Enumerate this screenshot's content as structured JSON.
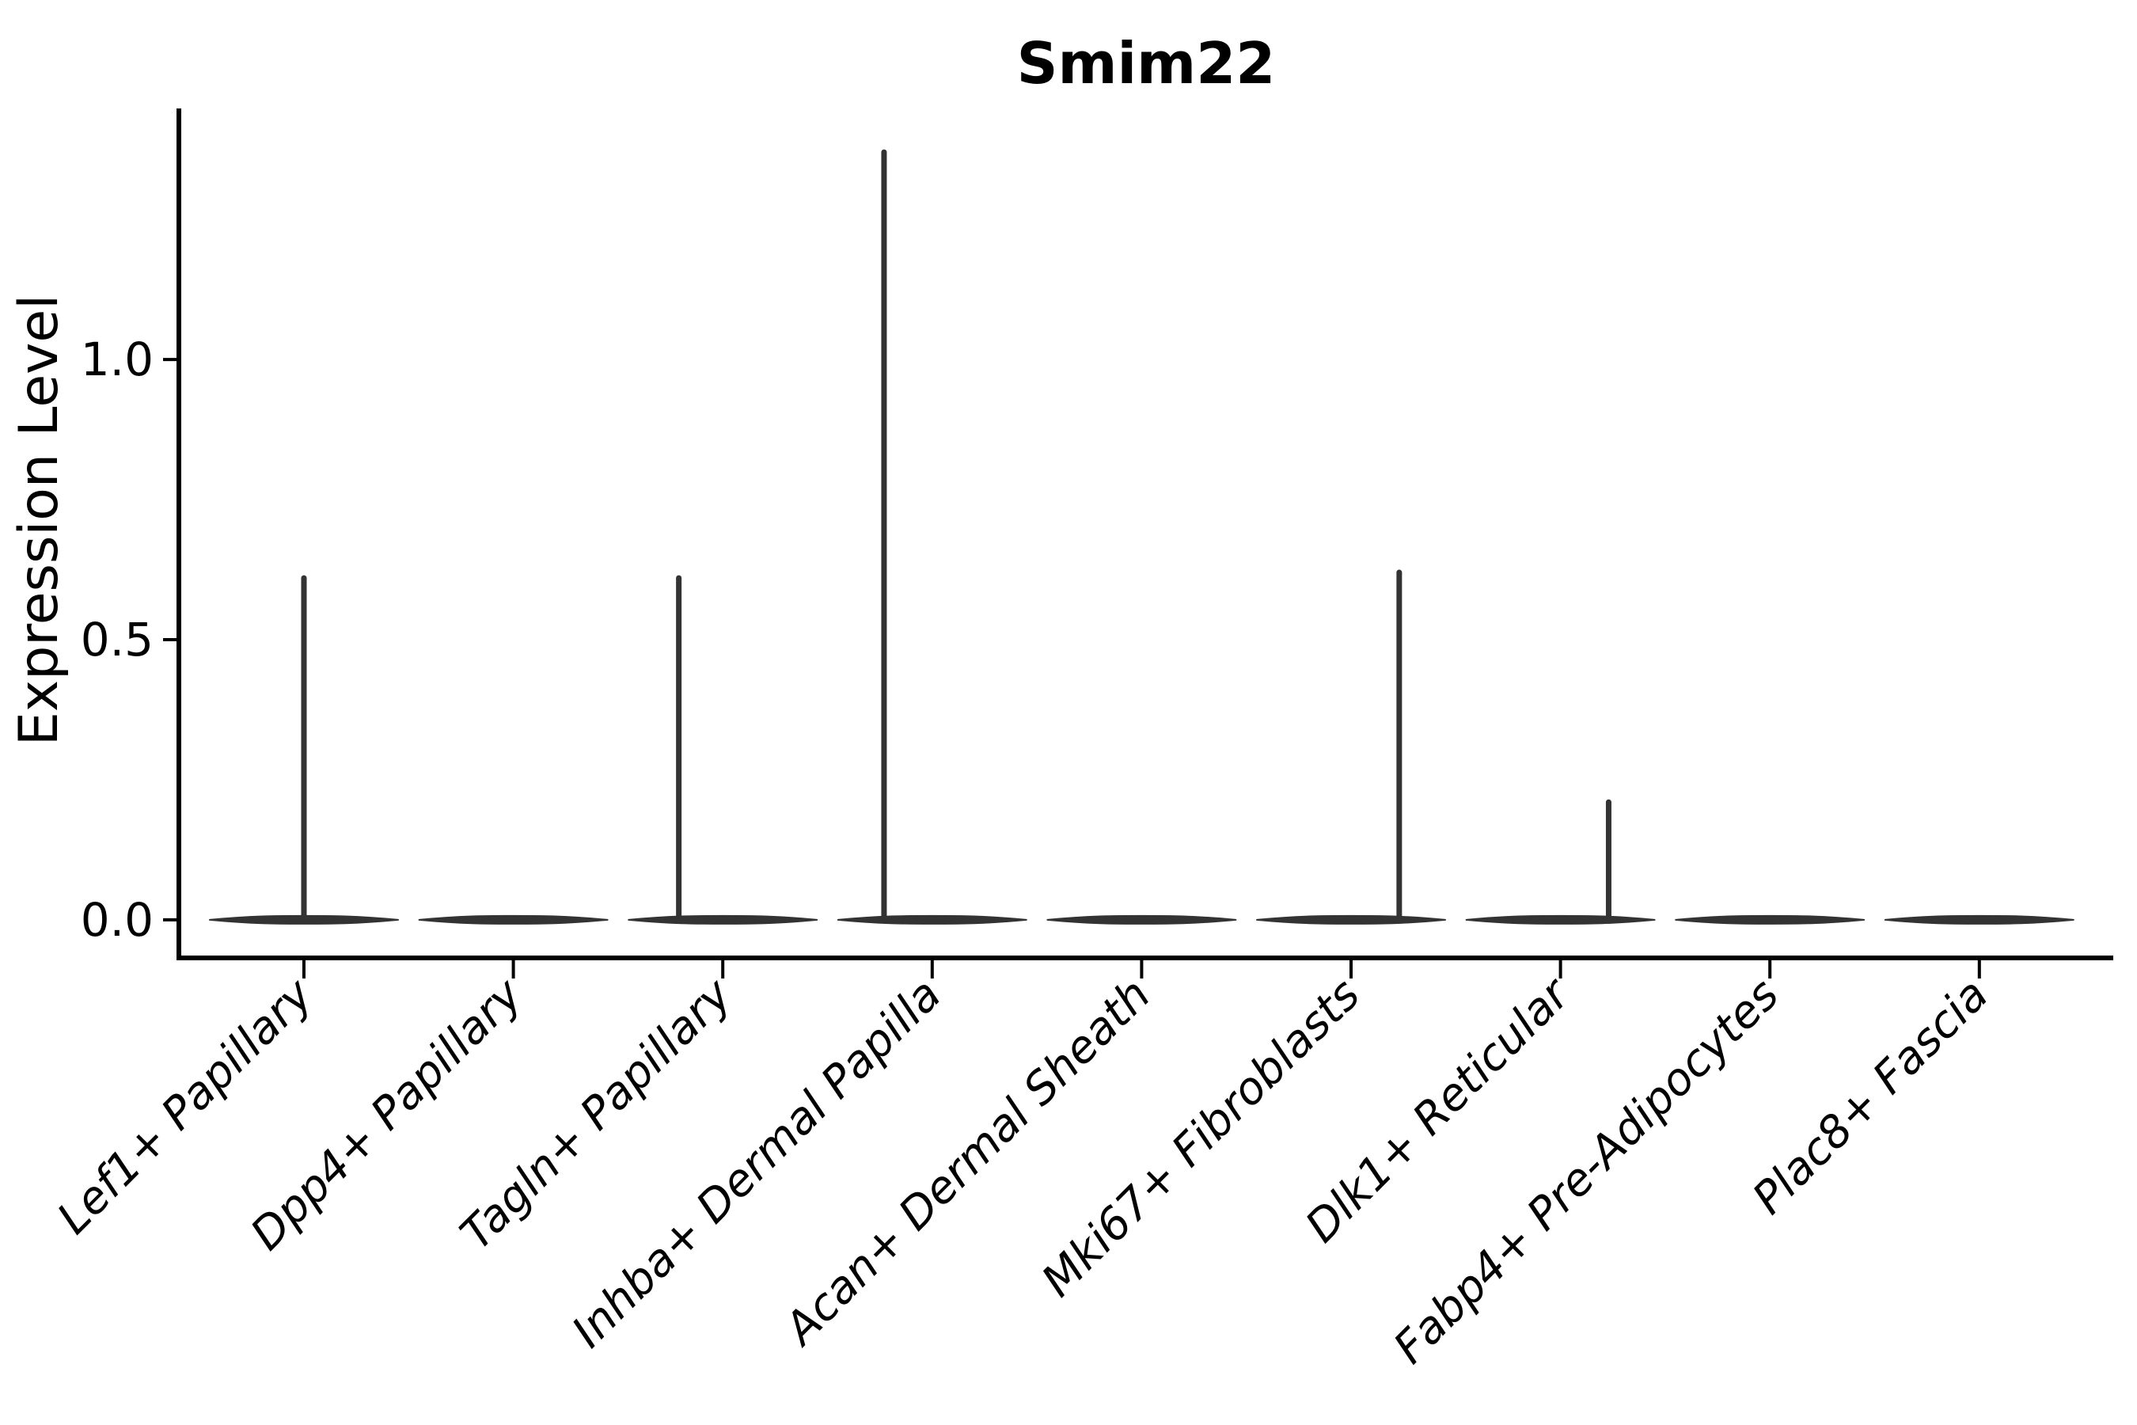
{
  "figure": {
    "background": "#ffffff",
    "axis_color": "#000000",
    "violin_color": "#333333"
  },
  "chart_data": {
    "type": "violin",
    "title": "Smim22",
    "xlabel": "",
    "ylabel": "Expression Level",
    "grid": false,
    "legend": "none",
    "ylim": [
      -0.068,
      1.448
    ],
    "yticks": [
      "0.0",
      "0.5",
      "1.0"
    ],
    "ytick_values": [
      0.0,
      0.5,
      1.0
    ],
    "categories": [
      "Lef1+ Papillary",
      "Dpp4+ Papillary",
      "Tagln+ Papillary",
      "Inhba+ Dermal Papilla",
      "Acan+ Dermal Sheath",
      "Mki67+ Fibroblasts",
      "Dlk1+ Reticular",
      "Fabp4+ Pre-Adipocytes",
      "Plac8+ Fascia"
    ],
    "violins": [
      {
        "category": "Lef1+ Papillary",
        "bulk_value": 0.0,
        "median": 0.0,
        "spike_max": 0.61,
        "spike_offset_frac": 0.0
      },
      {
        "category": "Dpp4+ Papillary",
        "bulk_value": 0.0,
        "median": 0.0,
        "spike_max": 0.0,
        "spike_offset_frac": 0.0
      },
      {
        "category": "Tagln+ Papillary",
        "bulk_value": 0.0,
        "median": 0.0,
        "spike_max": 0.61,
        "spike_offset_frac": -0.21
      },
      {
        "category": "Inhba+ Dermal Papilla",
        "bulk_value": 0.0,
        "median": 0.0,
        "spike_max": 1.37,
        "spike_offset_frac": -0.23
      },
      {
        "category": "Acan+ Dermal Sheath",
        "bulk_value": 0.0,
        "median": 0.0,
        "spike_max": 0.0,
        "spike_offset_frac": 0.0
      },
      {
        "category": "Mki67+ Fibroblasts",
        "bulk_value": 0.0,
        "median": 0.0,
        "spike_max": 0.62,
        "spike_offset_frac": 0.23
      },
      {
        "category": "Dlk1+ Reticular",
        "bulk_value": 0.0,
        "median": 0.0,
        "spike_max": 0.21,
        "spike_offset_frac": 0.23
      },
      {
        "category": "Fabp4+ Pre-Adipocytes",
        "bulk_value": 0.0,
        "median": 0.0,
        "spike_max": 0.0,
        "spike_offset_frac": 0.0
      },
      {
        "category": "Plac8+ Fascia",
        "bulk_value": 0.0,
        "median": 0.0,
        "spike_max": 0.0,
        "spike_offset_frac": 0.0
      }
    ]
  }
}
